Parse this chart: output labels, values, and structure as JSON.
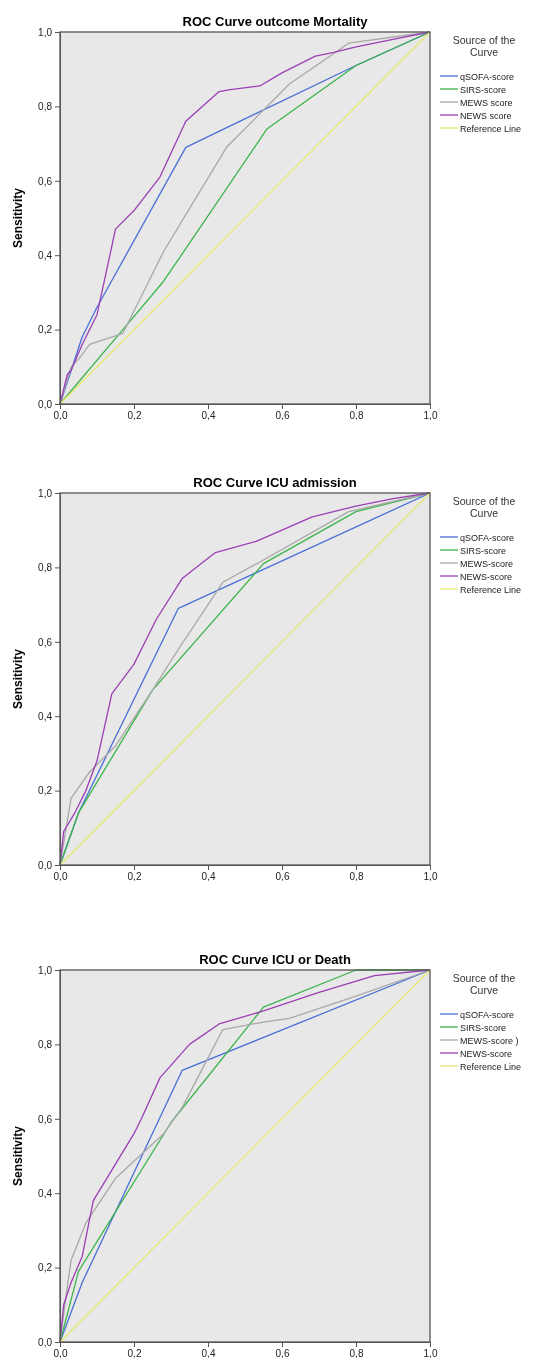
{
  "chart_data": [
    {
      "type": "line",
      "title": "ROC Curve outcome Mortality",
      "ylabel": "Sensitivity",
      "legend_title": "Source of the Curve",
      "legend": "right",
      "grid": false,
      "xlim": [
        0,
        1
      ],
      "ylim": [
        0,
        1
      ],
      "xticks": [
        {
          "value": 0,
          "label": "0,0"
        },
        {
          "value": 0.2,
          "label": "0,2"
        },
        {
          "value": 0.4,
          "label": "0,4"
        },
        {
          "value": 0.6,
          "label": "0,6"
        },
        {
          "value": 0.8,
          "label": "0,8"
        },
        {
          "value": 1,
          "label": "1,0"
        }
      ],
      "yticks": [
        {
          "value": 0,
          "label": "0,0"
        },
        {
          "value": 0.2,
          "label": "0,2"
        },
        {
          "value": 0.4,
          "label": "0,4"
        },
        {
          "value": 0.6,
          "label": "0,6"
        },
        {
          "value": 0.8,
          "label": "0,8"
        },
        {
          "value": 1,
          "label": "1,0"
        }
      ],
      "series": [
        {
          "name": "qSOFA-score",
          "color": "#4a6fd6",
          "x": [
            0,
            0.06,
            0.1,
            0.34,
            0.8,
            1
          ],
          "values": [
            0,
            0.18,
            0.26,
            0.69,
            0.91,
            1
          ]
        },
        {
          "name": "SIRS-score",
          "color": "#3cb44b",
          "x": [
            0,
            0.17,
            0.28,
            0.56,
            0.8,
            1
          ],
          "values": [
            0,
            0.2,
            0.33,
            0.74,
            0.91,
            1
          ]
        },
        {
          "name": "MEWS score",
          "color": "#a8a8a8",
          "x": [
            0,
            0.03,
            0.05,
            0.08,
            0.17,
            0.2,
            0.28,
            0.45,
            0.62,
            0.78,
            1
          ],
          "values": [
            0,
            0.1,
            0.12,
            0.16,
            0.19,
            0.25,
            0.41,
            0.69,
            0.86,
            0.97,
            1
          ]
        },
        {
          "name": "NEWS score",
          "color": "#9b3fb5",
          "x": [
            0,
            0.02,
            0.03,
            0.06,
            0.1,
            0.15,
            0.2,
            0.27,
            0.34,
            0.43,
            0.46,
            0.54,
            0.6,
            0.69,
            0.74,
            0.8,
            0.9,
            1
          ],
          "values": [
            0,
            0.08,
            0.09,
            0.16,
            0.24,
            0.47,
            0.52,
            0.61,
            0.76,
            0.84,
            0.845,
            0.855,
            0.89,
            0.935,
            0.945,
            0.96,
            0.98,
            1
          ]
        },
        {
          "name": "Reference Line",
          "color": "#e8e870",
          "x": [
            0,
            1
          ],
          "values": [
            0,
            1
          ]
        }
      ]
    },
    {
      "type": "line",
      "title": "ROC Curve ICU admission",
      "ylabel": "Sensitivity",
      "legend_title": "Source of the Curve",
      "legend": "right",
      "grid": false,
      "xlim": [
        0,
        1
      ],
      "ylim": [
        0,
        1
      ],
      "xticks": [
        {
          "value": 0,
          "label": "0,0"
        },
        {
          "value": 0.2,
          "label": "0,2"
        },
        {
          "value": 0.4,
          "label": "0,4"
        },
        {
          "value": 0.6,
          "label": "0,6"
        },
        {
          "value": 0.8,
          "label": "0,8"
        },
        {
          "value": 1,
          "label": "1,0"
        }
      ],
      "yticks": [
        {
          "value": 0,
          "label": "0,0"
        },
        {
          "value": 0.2,
          "label": "0,2"
        },
        {
          "value": 0.4,
          "label": "0,4"
        },
        {
          "value": 0.6,
          "label": "0,6"
        },
        {
          "value": 0.8,
          "label": "0,8"
        },
        {
          "value": 1,
          "label": "1,0"
        }
      ],
      "series": [
        {
          "name": "qSOFA-score",
          "color": "#4a6fd6",
          "x": [
            0,
            0.05,
            0.32,
            1
          ],
          "values": [
            0,
            0.14,
            0.69,
            1
          ]
        },
        {
          "name": "SIRS-score",
          "color": "#3cb44b",
          "x": [
            0,
            0.05,
            0.25,
            0.55,
            0.8,
            1
          ],
          "values": [
            0,
            0.14,
            0.47,
            0.81,
            0.95,
            1
          ]
        },
        {
          "name": "MEWS-score",
          "color": "#a8a8a8",
          "x": [
            0,
            0.03,
            0.08,
            0.15,
            0.25,
            0.32,
            0.44,
            0.55,
            0.78,
            1
          ],
          "values": [
            0,
            0.18,
            0.25,
            0.32,
            0.47,
            0.58,
            0.76,
            0.82,
            0.95,
            1
          ]
        },
        {
          "name": "NEWS-score",
          "color": "#9b3fb5",
          "x": [
            0,
            0.01,
            0.04,
            0.07,
            0.1,
            0.14,
            0.2,
            0.26,
            0.33,
            0.42,
            0.53,
            0.6,
            0.68,
            0.8,
            0.9,
            1
          ],
          "values": [
            0,
            0.09,
            0.14,
            0.2,
            0.28,
            0.46,
            0.54,
            0.66,
            0.77,
            0.84,
            0.87,
            0.9,
            0.935,
            0.965,
            0.985,
            1
          ]
        },
        {
          "name": "Reference Line",
          "color": "#e8e870",
          "x": [
            0,
            1
          ],
          "values": [
            0,
            1
          ]
        }
      ]
    },
    {
      "type": "line",
      "title": "ROC Curve ICU or Death",
      "ylabel": "Sensitivity",
      "legend_title": "Source of the Curve",
      "legend": "right",
      "grid": false,
      "xlim": [
        0,
        1
      ],
      "ylim": [
        0,
        1
      ],
      "xticks": [
        {
          "value": 0,
          "label": "0,0"
        },
        {
          "value": 0.2,
          "label": "0,2"
        },
        {
          "value": 0.4,
          "label": "0,4"
        },
        {
          "value": 0.6,
          "label": "0,6"
        },
        {
          "value": 0.8,
          "label": "0,8"
        },
        {
          "value": 1,
          "label": "1,0"
        }
      ],
      "yticks": [
        {
          "value": 0,
          "label": "0,0"
        },
        {
          "value": 0.2,
          "label": "0,2"
        },
        {
          "value": 0.4,
          "label": "0,4"
        },
        {
          "value": 0.6,
          "label": "0,6"
        },
        {
          "value": 0.8,
          "label": "0,8"
        },
        {
          "value": 1,
          "label": "1,0"
        }
      ],
      "series": [
        {
          "name": "qSOFA-score",
          "color": "#4a6fd6",
          "x": [
            0,
            0.06,
            0.33,
            1
          ],
          "values": [
            0,
            0.16,
            0.73,
            1
          ]
        },
        {
          "name": "SIRS-score",
          "color": "#3cb44b",
          "x": [
            0,
            0.05,
            0.3,
            0.55,
            0.8,
            1
          ],
          "values": [
            0,
            0.19,
            0.59,
            0.9,
            1,
            1
          ]
        },
        {
          "name": "MEWS-score )",
          "color": "#a8a8a8",
          "x": [
            0,
            0.02,
            0.03,
            0.07,
            0.15,
            0.28,
            0.33,
            0.44,
            0.55,
            0.62,
            0.8,
            1
          ],
          "values": [
            0,
            0.15,
            0.22,
            0.32,
            0.44,
            0.56,
            0.63,
            0.84,
            0.86,
            0.87,
            0.93,
            1
          ]
        },
        {
          "name": "NEWS-score",
          "color": "#9b3fb5",
          "x": [
            0,
            0.01,
            0.03,
            0.06,
            0.09,
            0.2,
            0.22,
            0.27,
            0.35,
            0.43,
            0.55,
            0.7,
            0.85,
            1
          ],
          "values": [
            0,
            0.1,
            0.16,
            0.23,
            0.38,
            0.56,
            0.6,
            0.71,
            0.8,
            0.855,
            0.89,
            0.94,
            0.985,
            1
          ]
        },
        {
          "name": "Reference Line",
          "color": "#e8e870",
          "x": [
            0,
            1
          ],
          "values": [
            0,
            1
          ]
        }
      ]
    }
  ]
}
